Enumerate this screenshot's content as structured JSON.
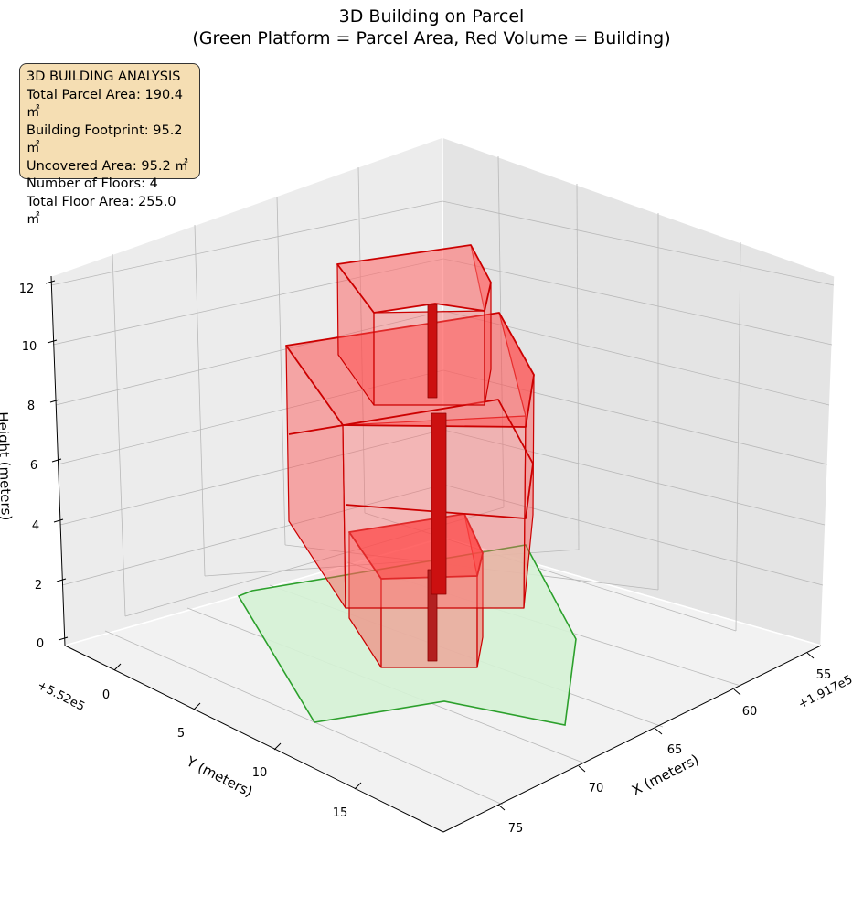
{
  "chart_data": {
    "type": "3d-polygon",
    "title": "3D Building on Parcel",
    "subtitle": "(Green Platform = Parcel Area, Red Volume = Building)",
    "xlabel": "X (meters)",
    "ylabel": "Y (meters)",
    "zlabel": "Height (meters)",
    "x_offset_label": "+1.917e5",
    "y_offset_label": "+5.52e5",
    "x_ticks": [
      "55",
      "60",
      "65",
      "70",
      "75"
    ],
    "y_ticks": [
      "0",
      "5",
      "10",
      "15"
    ],
    "z_ticks": [
      "0",
      "2",
      "4",
      "6",
      "8",
      "10",
      "12"
    ],
    "colors": {
      "parcel_fill": "#d5f2d5",
      "parcel_edge": "#2ca02c",
      "building": "#ff0000"
    },
    "info_box": [
      "3D BUILDING ANALYSIS",
      "Total Parcel Area: 190.4 ㎡",
      "Building Footprint: 95.2 ㎡",
      "Uncovered Area: 95.2 ㎡",
      "Number of Floors: 4",
      "Total Floor Area: 255.0 ㎡"
    ],
    "parcel_area_m2": 190.4,
    "building_footprint_m2": 95.2,
    "uncovered_area_m2": 95.2,
    "floors": 4,
    "total_floor_area_m2": 255.0
  }
}
